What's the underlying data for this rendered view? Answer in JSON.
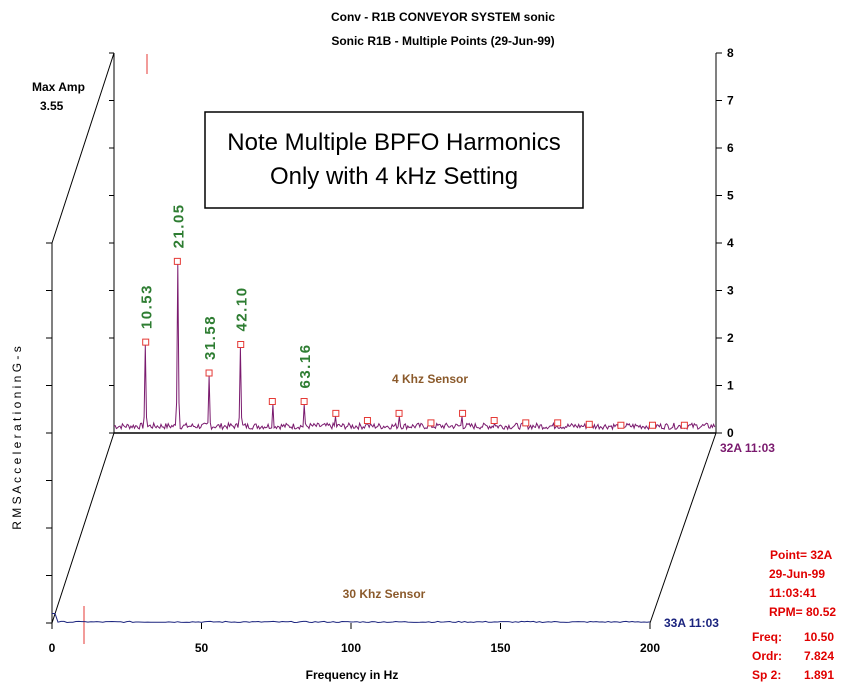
{
  "title_line1": "Conv - R1B CONVEYOR SYSTEM sonic",
  "title_line2": "Sonic R1B  - Multiple Points    (29-Jun-99)",
  "max_amp_label": "Max Amp",
  "max_amp_value": "3.55",
  "ylabel": "R M S  A c c e l e r a t i o n  i n  G - s",
  "xlabel": "Frequency in Hz",
  "note_line1": "Note Multiple BPFO Harmonics",
  "note_line2": "Only with 4 kHz Setting",
  "sensor_top_label": "4 Khz Sensor",
  "sensor_bottom_label": "30 Khz Sensor",
  "trace_top_id": "32A  11:03",
  "trace_bottom_id": "33A  11:03",
  "info": {
    "point": "Point= 32A",
    "date": "29-Jun-99",
    "time": "11:03:41",
    "rpm": "RPM= 80.52",
    "freq_label": "Freq:",
    "freq_value": "10.50",
    "ordr_label": "Ordr:",
    "ordr_value": "7.824",
    "sp2_label": "Sp 2:",
    "sp2_value": "1.891"
  },
  "colors": {
    "trace_top": "#7a1a6e",
    "trace_bottom": "#1a237e",
    "annotation": "#2e7d32",
    "sensor_label": "#8b5a2b",
    "info": "#e00000",
    "marker": "#e53935"
  },
  "chart_data": {
    "type": "line",
    "xlim": [
      0,
      200
    ],
    "ylim": [
      0,
      8
    ],
    "x_ticks": [
      0,
      50,
      100,
      150,
      200
    ],
    "y_ticks": [
      0,
      1,
      2,
      3,
      4,
      5,
      6,
      7,
      8
    ],
    "series": [
      {
        "name": "4 Khz Sensor",
        "peaks": [
          {
            "x": 10.53,
            "y": 1.85
          },
          {
            "x": 21.05,
            "y": 3.55
          },
          {
            "x": 31.58,
            "y": 1.2
          },
          {
            "x": 42.1,
            "y": 1.8
          },
          {
            "x": 52.6,
            "y": 0.6
          },
          {
            "x": 63.16,
            "y": 0.6
          },
          {
            "x": 73.7,
            "y": 0.35
          },
          {
            "x": 84.2,
            "y": 0.2
          },
          {
            "x": 94.7,
            "y": 0.35
          },
          {
            "x": 105.3,
            "y": 0.15
          },
          {
            "x": 115.8,
            "y": 0.35
          },
          {
            "x": 126.3,
            "y": 0.2
          },
          {
            "x": 136.8,
            "y": 0.15
          },
          {
            "x": 147.4,
            "y": 0.15
          },
          {
            "x": 157.9,
            "y": 0.12
          },
          {
            "x": 168.4,
            "y": 0.1
          },
          {
            "x": 178.9,
            "y": 0.1
          },
          {
            "x": 189.5,
            "y": 0.1
          }
        ]
      },
      {
        "name": "30 Khz Sensor",
        "peaks": [
          {
            "x": 0.5,
            "y": 0.2
          },
          {
            "x": 10.5,
            "y": 0.03
          }
        ]
      }
    ],
    "annotations": [
      {
        "text": "10.53",
        "x": 10.53
      },
      {
        "text": "21.05",
        "x": 21.05
      },
      {
        "text": "31.58",
        "x": 31.58
      },
      {
        "text": "42.10",
        "x": 42.1
      },
      {
        "text": "63.16",
        "x": 63.16
      }
    ]
  }
}
